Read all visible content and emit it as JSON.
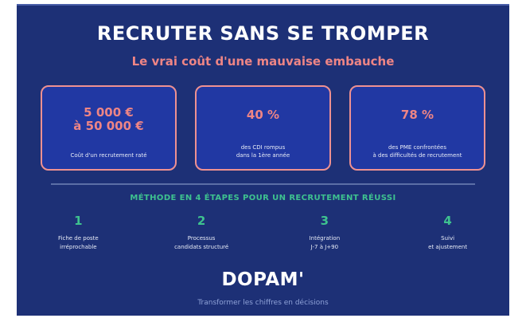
{
  "page": {
    "title": "RECRUTER SANS SE TROMPER",
    "subtitle": "Le vrai coût d'une mauvaise embauche"
  },
  "stats": {
    "cards": [
      {
        "value_lines": [
          "5 000 €",
          "à 50 000 €"
        ],
        "label_lines": [
          "Coût d'un recrutement raté"
        ]
      },
      {
        "value_lines": [
          "40 %"
        ],
        "label_lines": [
          "des CDI rompus",
          "dans la 1ère année"
        ]
      },
      {
        "value_lines": [
          "78 %"
        ],
        "label_lines": [
          "des PME confrontées",
          "à des difficultés de recrutement"
        ]
      }
    ]
  },
  "method": {
    "heading": "MÉTHODE EN 4 ÉTAPES POUR UN RECRUTEMENT RÉUSSI",
    "steps": [
      {
        "number": "1",
        "label_lines": [
          "Fiche de poste",
          "irréprochable"
        ]
      },
      {
        "number": "2",
        "label_lines": [
          "Processus",
          "candidats structuré"
        ]
      },
      {
        "number": "3",
        "label_lines": [
          "Intégration",
          "J-7 à J+90"
        ]
      },
      {
        "number": "4",
        "label_lines": [
          "Suivi",
          "et ajustement"
        ]
      }
    ]
  },
  "footer": {
    "brand": "DOPAM'",
    "tagline": "Transformer les chiffres en décisions"
  },
  "colors": {
    "panel_background": "#1d3076",
    "card_background": "#2138a3",
    "card_border_salmon": "#ef9191",
    "accent_salmon": "#ee8585",
    "accent_teal": "#3ec28f",
    "divider_blue": "#5c6fa6",
    "tagline_blue": "#8fa2d8"
  }
}
